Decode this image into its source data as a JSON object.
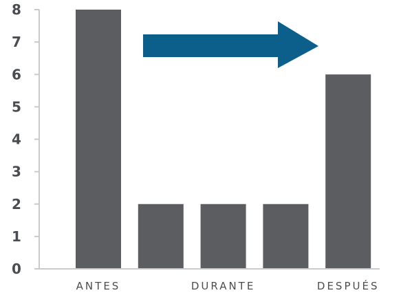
{
  "chart_data": {
    "type": "bar",
    "categories": [
      "ANTES",
      "",
      "DURANTE",
      "",
      "DESPUÉS"
    ],
    "values": [
      8,
      2,
      2,
      2,
      6
    ],
    "ylim": [
      0,
      8
    ],
    "yticks": [
      0,
      1,
      2,
      3,
      4,
      5,
      6,
      7,
      8
    ],
    "grid": false,
    "annotation": "right-pointing arrow between first and last bars",
    "colors": {
      "bar": "#5b5d61",
      "axis": "#c9cacc",
      "arrow": "#0b5f8a",
      "text": "#4a4c50"
    }
  }
}
